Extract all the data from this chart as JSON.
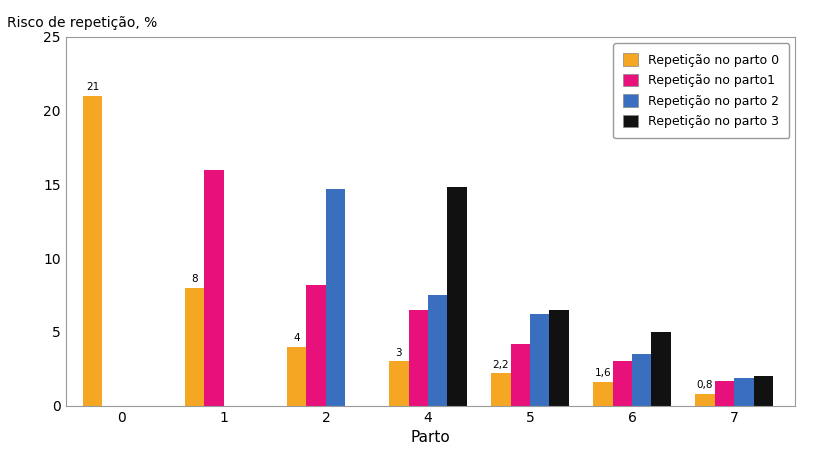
{
  "ylabel": "Risco de repetição, %",
  "xlabel": "Parto",
  "ylim": [
    0,
    25
  ],
  "yticks": [
    0,
    5,
    10,
    15,
    20,
    25
  ],
  "partos": [
    0,
    1,
    2,
    4,
    5,
    6,
    7
  ],
  "x_positions": [
    0,
    1,
    2,
    3,
    4,
    5,
    6
  ],
  "series": [
    {
      "label": "Repetição no parto 0",
      "color": "#F5A623",
      "values": [
        21.0,
        8.0,
        4.0,
        3.0,
        2.2,
        1.6,
        0.8
      ]
    },
    {
      "label": "Repetição no parto1",
      "color": "#E8107A",
      "values": [
        null,
        16.0,
        8.2,
        6.5,
        4.2,
        3.0,
        1.7
      ]
    },
    {
      "label": "Repetição no parto 2",
      "color": "#3A6FBF",
      "values": [
        null,
        null,
        14.7,
        7.5,
        6.2,
        3.5,
        1.9
      ]
    },
    {
      "label": "Repetição no parto 3",
      "color": "#111111",
      "values": [
        null,
        null,
        null,
        14.8,
        6.5,
        5.0,
        2.0
      ]
    }
  ],
  "bar_width": 0.19,
  "orange_labels": [
    "21",
    "8",
    "4",
    "3",
    "2,2",
    "1,6",
    "0,8"
  ],
  "background_color": "#FFFFFF",
  "legend_labels": [
    "Repetição no parto 0",
    "Repetição no parto1",
    "Repetição no parto 2",
    "Repetição no parto 3"
  ]
}
